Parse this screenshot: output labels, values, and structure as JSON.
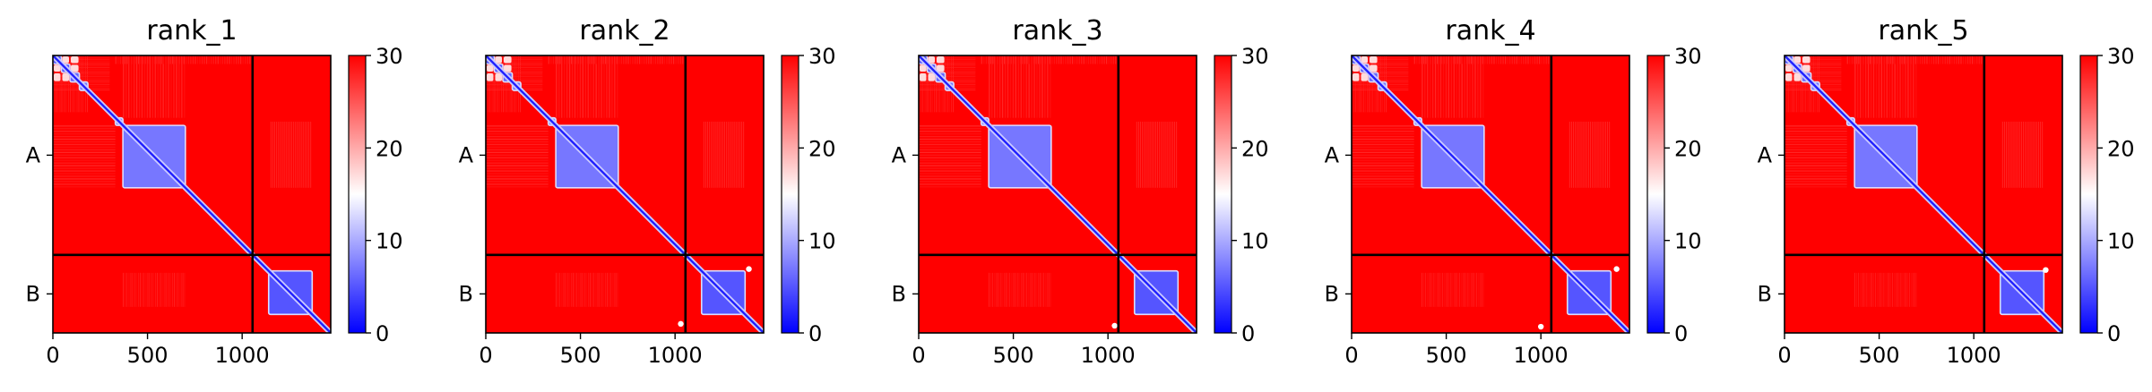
{
  "chart_data": {
    "type": "heatmap",
    "colormap": {
      "name": "bwr",
      "low_color": "#0000ff",
      "mid_color": "#ffffff",
      "high_color": "#ff0000",
      "vmin": 0,
      "vmax": 30,
      "ticks": [
        0,
        10,
        20,
        30
      ]
    },
    "xlim": [
      0,
      1468
    ],
    "x_ticks": [
      0,
      500,
      1000
    ],
    "chains": [
      {
        "name": "A",
        "start": 0,
        "end": 1055
      },
      {
        "name": "B",
        "start": 1055,
        "end": 1468
      }
    ],
    "domains": [
      {
        "start": 0,
        "end": 45,
        "error": 5
      },
      {
        "start": 45,
        "end": 90,
        "error": 5
      },
      {
        "start": 90,
        "end": 140,
        "error": 6
      },
      {
        "start": 140,
        "end": 185,
        "error": 7
      },
      {
        "start": 330,
        "end": 370,
        "error": 8
      },
      {
        "start": 370,
        "end": 700,
        "error": 7
      },
      {
        "start": 1140,
        "end": 1370,
        "error": 5
      }
    ],
    "panels": [
      {
        "title": "rank_1",
        "extra_spots": []
      },
      {
        "title": "rank_2",
        "extra_spots": [
          {
            "x": 1030,
            "y": 1420
          },
          {
            "x": 1390,
            "y": 1130
          }
        ]
      },
      {
        "title": "rank_3",
        "extra_spots": [
          {
            "x": 1035,
            "y": 1430
          }
        ]
      },
      {
        "title": "rank_4",
        "extra_spots": [
          {
            "x": 1000,
            "y": 1435
          },
          {
            "x": 1400,
            "y": 1130
          }
        ]
      },
      {
        "title": "rank_5",
        "extra_spots": [
          {
            "x": 1380,
            "y": 1135
          }
        ]
      }
    ]
  }
}
